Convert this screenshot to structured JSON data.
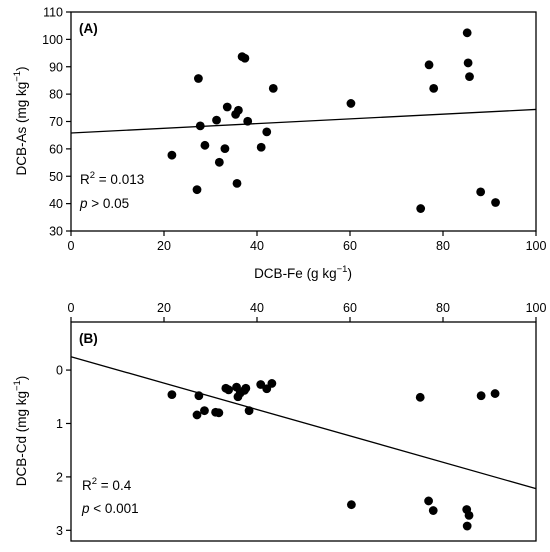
{
  "chart_data": [
    {
      "type": "scatter",
      "panel_label": "(A)",
      "xlabel": "DCB-Fe (g kg",
      "xlabel_sup": "−1",
      "xlabel_end": ")",
      "ylabel": "DCB-As (mg kg",
      "ylabel_sup": "−1",
      "ylabel_end": ")",
      "xlim": [
        0,
        100
      ],
      "ylim": [
        30,
        110
      ],
      "xticks": [
        0,
        20,
        40,
        60,
        80,
        100
      ],
      "yticks": [
        30,
        40,
        50,
        60,
        70,
        80,
        90,
        100,
        110
      ],
      "grid": false,
      "points": [
        {
          "x": 21.7,
          "y": 57.7
        },
        {
          "x": 27.1,
          "y": 45.1
        },
        {
          "x": 27.4,
          "y": 85.7
        },
        {
          "x": 27.8,
          "y": 68.4
        },
        {
          "x": 28.8,
          "y": 61.3
        },
        {
          "x": 31.3,
          "y": 70.5
        },
        {
          "x": 31.9,
          "y": 55.1
        },
        {
          "x": 33.1,
          "y": 60.1
        },
        {
          "x": 33.6,
          "y": 75.3
        },
        {
          "x": 35.4,
          "y": 72.6
        },
        {
          "x": 35.7,
          "y": 47.4
        },
        {
          "x": 36.0,
          "y": 74.1
        },
        {
          "x": 36.8,
          "y": 93.7
        },
        {
          "x": 37.4,
          "y": 93.1
        },
        {
          "x": 38.0,
          "y": 70.1
        },
        {
          "x": 40.9,
          "y": 60.6
        },
        {
          "x": 42.1,
          "y": 66.2
        },
        {
          "x": 43.5,
          "y": 82.1
        },
        {
          "x": 60.2,
          "y": 76.6
        },
        {
          "x": 75.2,
          "y": 38.2
        },
        {
          "x": 77.0,
          "y": 90.7
        },
        {
          "x": 78.0,
          "y": 82.1
        },
        {
          "x": 85.2,
          "y": 102.4
        },
        {
          "x": 85.4,
          "y": 91.4
        },
        {
          "x": 85.7,
          "y": 86.4
        },
        {
          "x": 88.1,
          "y": 44.3
        },
        {
          "x": 91.3,
          "y": 40.4
        }
      ],
      "fit_line": {
        "x": [
          0,
          100
        ],
        "y": [
          65.8,
          74.4
        ]
      },
      "annotations": {
        "r2_prefix": "R",
        "r2_sup": "2",
        "r2_value": " = 0.013",
        "p_symbol": "p",
        "p_text": " > 0.05"
      }
    },
    {
      "type": "scatter",
      "panel_label": "(B)",
      "xlabel": "",
      "ylabel": "DCB-Cd (mg kg",
      "ylabel_sup": "−1",
      "ylabel_end": ")",
      "xlim": [
        0,
        100
      ],
      "ylim": [
        3.2,
        -0.9
      ],
      "y_inverted": true,
      "x_axis_position": "top",
      "xticks": [
        0,
        20,
        40,
        60,
        80,
        100
      ],
      "yticks": [
        0,
        1,
        2,
        3
      ],
      "grid": false,
      "points": [
        {
          "x": 21.7,
          "y": 0.46
        },
        {
          "x": 27.1,
          "y": 0.84
        },
        {
          "x": 27.5,
          "y": 0.48
        },
        {
          "x": 28.7,
          "y": 0.76
        },
        {
          "x": 31.1,
          "y": 0.79
        },
        {
          "x": 31.8,
          "y": 0.8
        },
        {
          "x": 33.3,
          "y": 0.34
        },
        {
          "x": 33.9,
          "y": 0.37
        },
        {
          "x": 35.6,
          "y": 0.32
        },
        {
          "x": 35.9,
          "y": 0.5
        },
        {
          "x": 36.4,
          "y": 0.43
        },
        {
          "x": 37.3,
          "y": 0.38
        },
        {
          "x": 37.6,
          "y": 0.34
        },
        {
          "x": 38.3,
          "y": 0.76
        },
        {
          "x": 40.8,
          "y": 0.27
        },
        {
          "x": 42.1,
          "y": 0.35
        },
        {
          "x": 43.2,
          "y": 0.25
        },
        {
          "x": 60.3,
          "y": 2.52
        },
        {
          "x": 75.1,
          "y": 0.51
        },
        {
          "x": 76.9,
          "y": 2.45
        },
        {
          "x": 77.9,
          "y": 2.63
        },
        {
          "x": 85.1,
          "y": 2.61
        },
        {
          "x": 85.2,
          "y": 2.92
        },
        {
          "x": 85.6,
          "y": 2.72
        },
        {
          "x": 88.2,
          "y": 0.48
        },
        {
          "x": 91.2,
          "y": 0.44
        }
      ],
      "fit_line": {
        "x": [
          0,
          100
        ],
        "y": [
          -0.25,
          2.22
        ]
      },
      "annotations": {
        "r2_prefix": "R",
        "r2_sup": "2",
        "r2_value": " = 0.4",
        "p_symbol": "p",
        "p_text": " < 0.001"
      }
    }
  ]
}
